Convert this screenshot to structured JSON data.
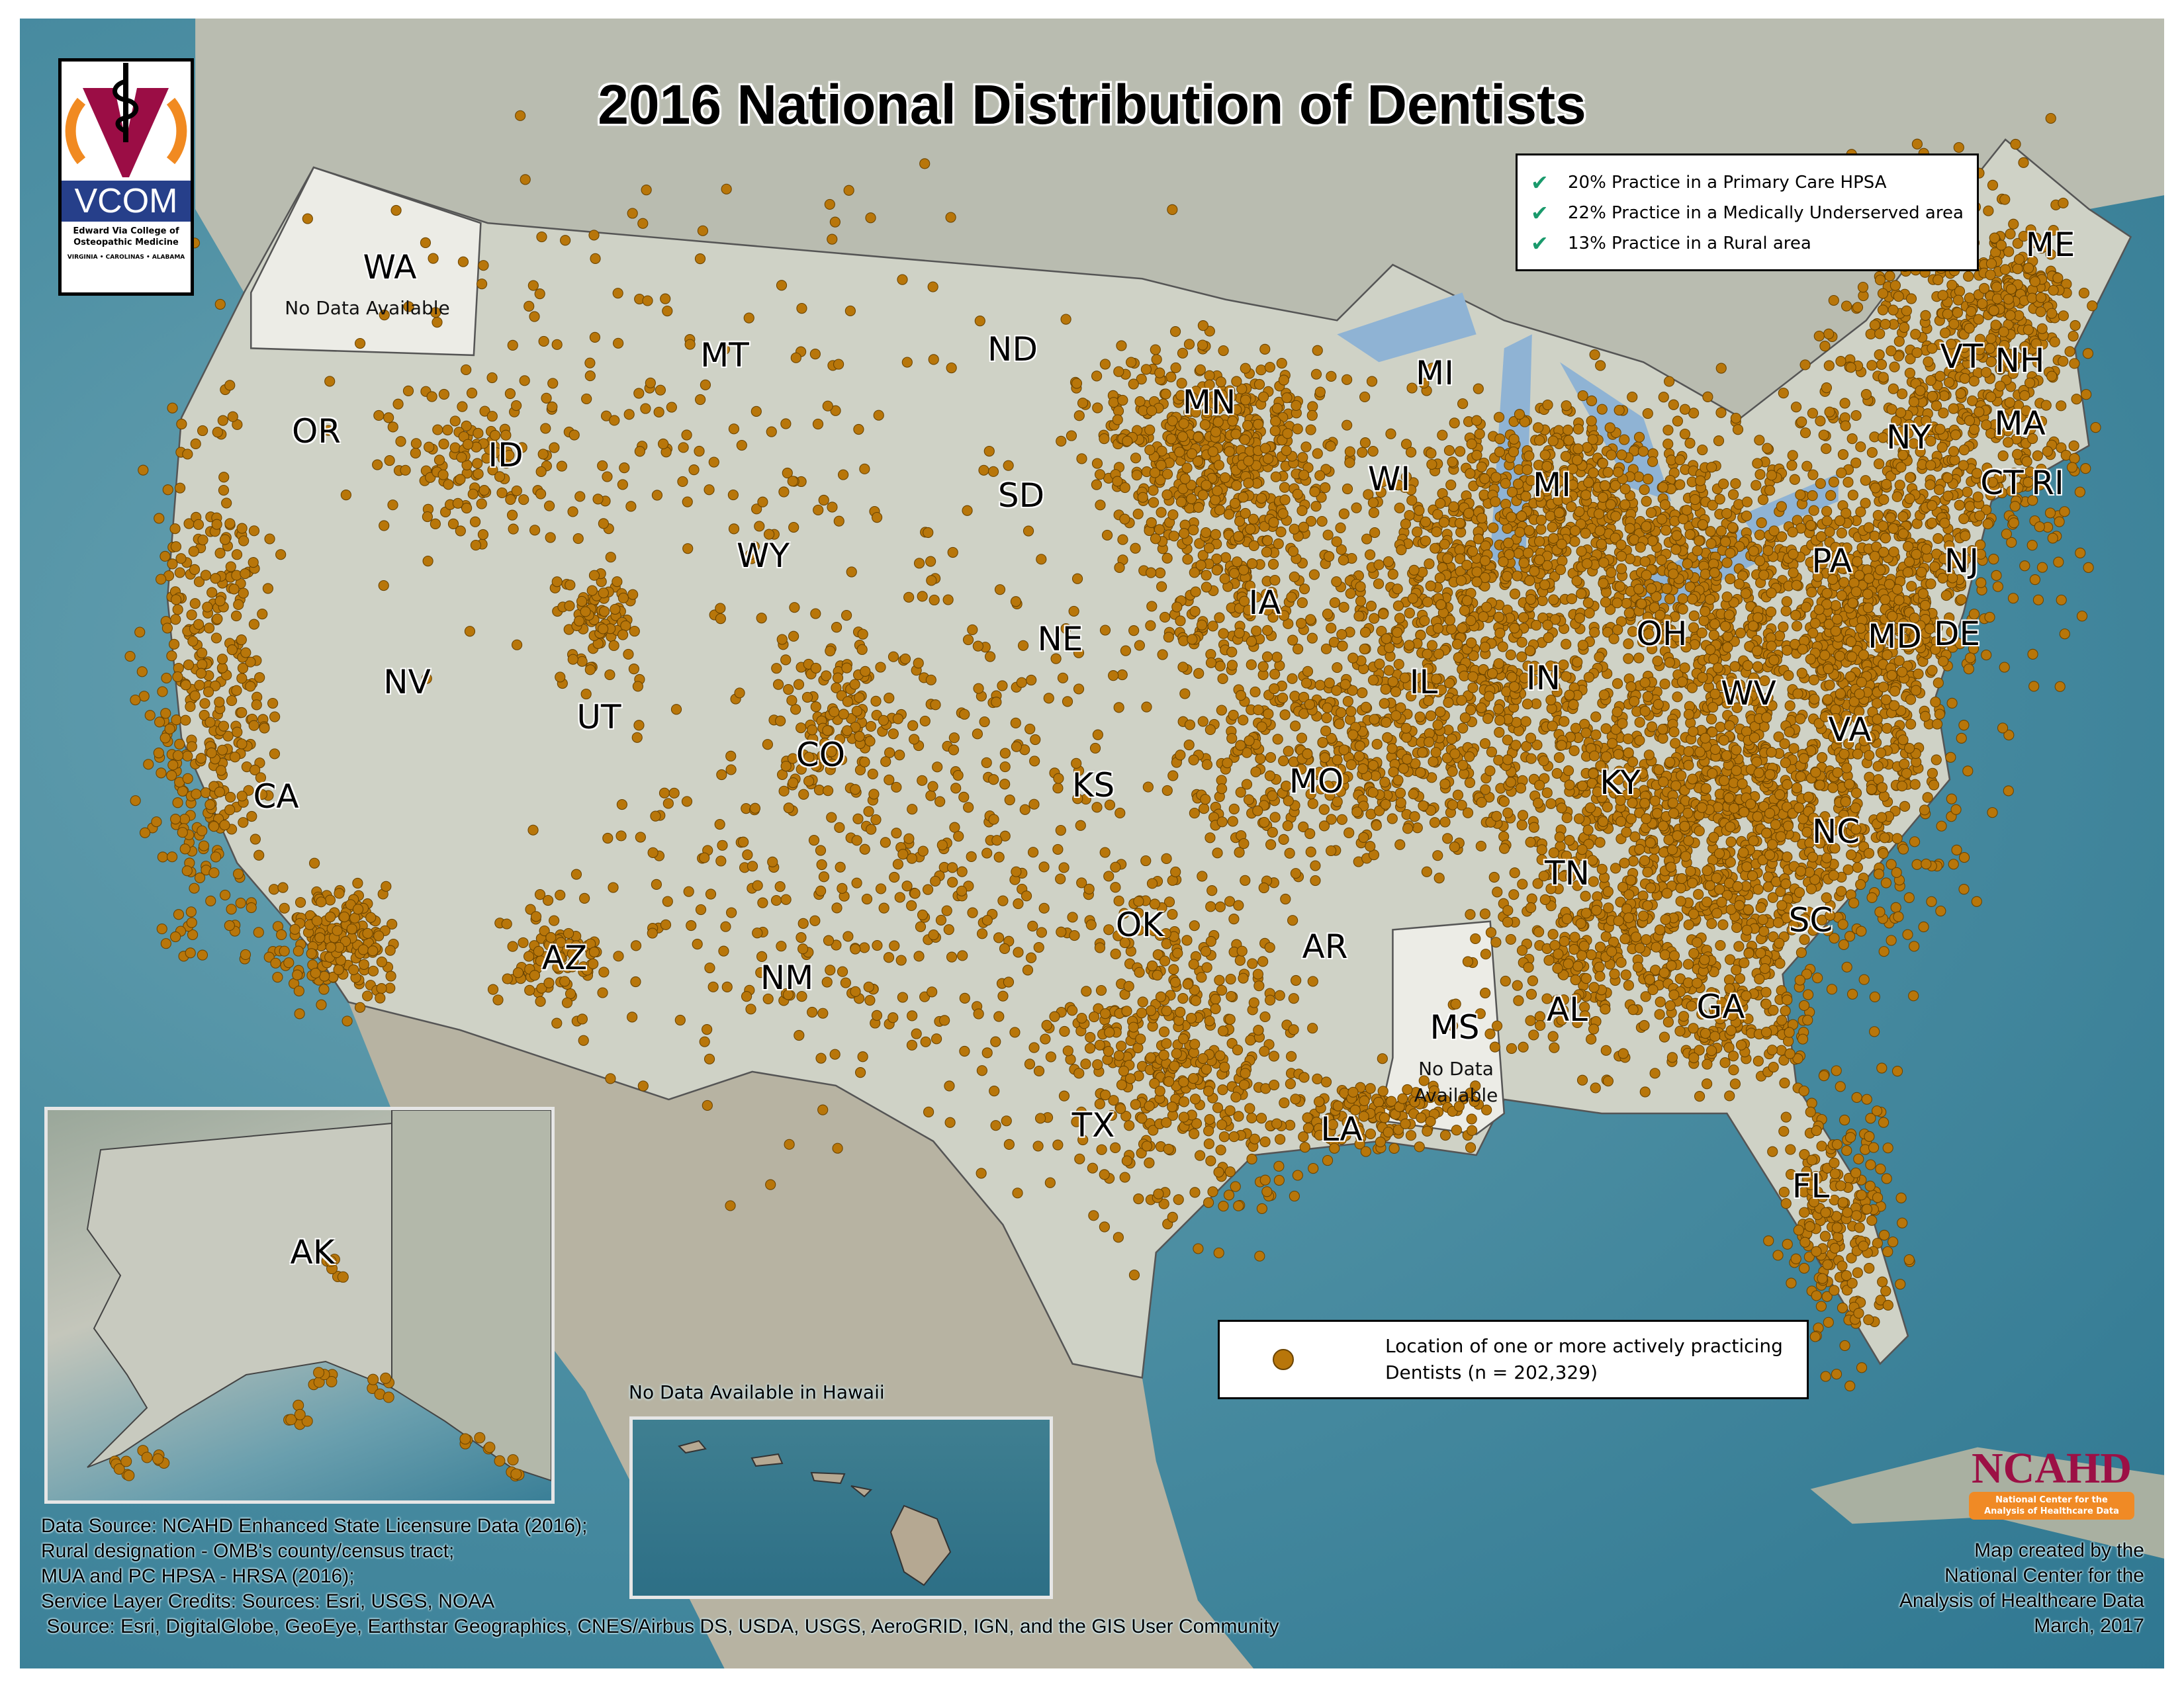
{
  "title": "2016 National Distribution of Dentists",
  "logo_vcom": {
    "text": "VCOM",
    "subtitle": "Edward Via College of Osteopathic Medicine",
    "campuses": "VIRGINIA • CAROLINAS • ALABAMA"
  },
  "stats": [
    {
      "icon": "check-icon",
      "text": "20% Practice in a Primary Care HPSA"
    },
    {
      "icon": "check-icon",
      "text": "22% Practice in a Medically Underserved area"
    },
    {
      "icon": "check-icon",
      "text": "13% Practice in a Rural area"
    }
  ],
  "legend": {
    "text_line1": "Location of one or more actively practicing",
    "text_line2": "Dentists (n = 202,329)",
    "dot_color": "#b8760a"
  },
  "states": [
    "WA",
    "OR",
    "ID",
    "MT",
    "ND",
    "MN",
    "SD",
    "WY",
    "NE",
    "IA",
    "WI",
    "MI",
    "MI",
    "IL",
    "IN",
    "OH",
    "PA",
    "NY",
    "VT",
    "NH",
    "ME",
    "MA",
    "CT",
    "RI",
    "NJ",
    "MD",
    "DE",
    "WV",
    "VA",
    "KY",
    "NC",
    "TN",
    "SC",
    "GA",
    "AL",
    "MS",
    "FL",
    "LA",
    "AR",
    "MO",
    "KS",
    "OK",
    "TX",
    "NM",
    "CO",
    "UT",
    "AZ",
    "NV",
    "CA",
    "AK"
  ],
  "no_data": {
    "wa": "No Data Available",
    "ms_line1": "No Data",
    "ms_line2": "Available",
    "hawaii": "No Data Available in Hawaii"
  },
  "sources": [
    "Data Source: NCAHD Enhanced State Licensure Data (2016);",
    "Rural designation - OMB's county/census tract;",
    "MUA and PC HPSA - HRSA (2016);",
    "Service Layer Credits: Sources: Esri, USGS, NOAA",
    " Source: Esri, DigitalGlobe, GeoEye, Earthstar Geographics, CNES/Airbus DS, USDA, USGS, AeroGRID, IGN, and the GIS User Community"
  ],
  "credit": [
    "Map created by the",
    "National Center for the",
    "Analysis of Healthcare Data",
    "March, 2017"
  ],
  "logo_ncahd": {
    "text": "NCAHD",
    "subtitle_line1": "National Center for the",
    "subtitle_line2": "Analysis of Healthcare Data"
  }
}
